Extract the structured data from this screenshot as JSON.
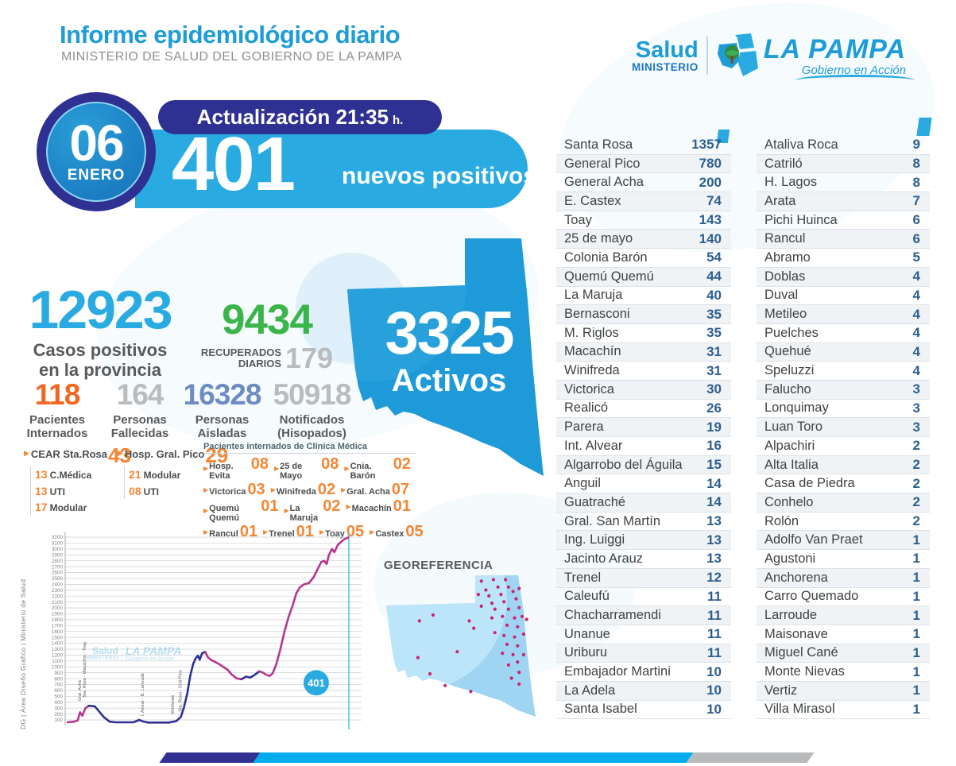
{
  "header": {
    "title": "Informe epidemiológico diario",
    "subtitle": "MINISTERIO DE SALUD DEL GOBIERNO DE LA PAMPA"
  },
  "logos": {
    "salud": "Salud",
    "ministerio": "MINISTERIO",
    "la_pampa": "LA PAMPA",
    "tagline": "Gobierno en Acción"
  },
  "date_badge": {
    "day": "06",
    "month": "ENERO"
  },
  "update": {
    "label": "Actualización 21:35",
    "hours_suffix": "h.",
    "new_positives": "401",
    "new_positives_label": "nuevos positivos"
  },
  "stats": {
    "positives": {
      "value": "12923",
      "label_line1": "Casos positivos",
      "label_line2": "en la provincia",
      "color": "#29abe2"
    },
    "recovered": {
      "value": "9434",
      "label_line1": "RECUPERADOS",
      "label_line2": "DIARIOS",
      "daily": "179",
      "color": "#39b54a"
    },
    "secondary": [
      {
        "value": "118",
        "label_line1": "Pacientes",
        "label_line2": "Internados",
        "color": "#f26722"
      },
      {
        "value": "164",
        "label_line1": "Personas",
        "label_line2": "Fallecidas",
        "color": "#b9bcbe"
      },
      {
        "value": "16328",
        "label_line1": "Personas",
        "label_line2": "Aisladas",
        "color": "#6d8cc3"
      },
      {
        "value": "50918",
        "label_line1": "Notificados",
        "label_line2": "(Hisopados)",
        "color": "#b9bcbe"
      }
    ]
  },
  "hospitals": {
    "groups": [
      {
        "name": "CEAR Sta.Rosa",
        "value": "43",
        "details": [
          {
            "num": "13",
            "label": "C.Médica"
          },
          {
            "num": "13",
            "label": "UTI"
          },
          {
            "num": "17",
            "label": "Modular"
          }
        ]
      },
      {
        "name": "Hosp. Gral. Pico",
        "value": "29",
        "details": [
          {
            "num": "21",
            "label": "Modular"
          },
          {
            "num": "08",
            "label": "UTI"
          }
        ]
      }
    ],
    "clinica_medica": {
      "title": "Pacientes internados de Clínica Médica",
      "rows": [
        [
          {
            "name": "Hosp. Evita",
            "num": "08"
          },
          {
            "name": "25 de Mayo",
            "num": "08"
          },
          {
            "name": "Cnia. Barón",
            "num": "02"
          }
        ],
        [
          {
            "name": "Victorica",
            "num": "03"
          },
          {
            "name": "Winifreda",
            "num": "02"
          },
          {
            "name": "Gral. Acha",
            "num": "07"
          }
        ],
        [
          {
            "name": "Quemú Quemú",
            "num": "01"
          },
          {
            "name": "La Maruja",
            "num": "02"
          },
          {
            "name": "Macachín",
            "num": "01"
          }
        ],
        [
          {
            "name": "Rancul",
            "num": "01"
          },
          {
            "name": "Trenel",
            "num": "01"
          },
          {
            "name": "Toay",
            "num": "05"
          },
          {
            "name": "Castex",
            "num": "05"
          }
        ]
      ]
    }
  },
  "actives_map": {
    "value": "3325",
    "label": "Activos",
    "color": "#1f9ad8"
  },
  "georeference": {
    "title": "GEOREFERENCIA",
    "dot_color": "#c9256f",
    "dots": [
      [
        0.63,
        0.04
      ],
      [
        0.71,
        0.03
      ],
      [
        0.79,
        0.03
      ],
      [
        0.81,
        0.08
      ],
      [
        0.74,
        0.08
      ],
      [
        0.66,
        0.1
      ],
      [
        0.61,
        0.13
      ],
      [
        0.68,
        0.14
      ],
      [
        0.76,
        0.13
      ],
      [
        0.84,
        0.11
      ],
      [
        0.88,
        0.09
      ],
      [
        0.86,
        0.16
      ],
      [
        0.78,
        0.18
      ],
      [
        0.7,
        0.19
      ],
      [
        0.63,
        0.21
      ],
      [
        0.72,
        0.23
      ],
      [
        0.81,
        0.23
      ],
      [
        0.88,
        0.22
      ],
      [
        0.9,
        0.28
      ],
      [
        0.85,
        0.29
      ],
      [
        0.77,
        0.28
      ],
      [
        0.7,
        0.29
      ],
      [
        0.8,
        0.34
      ],
      [
        0.87,
        0.35
      ],
      [
        0.91,
        0.4
      ],
      [
        0.85,
        0.42
      ],
      [
        0.78,
        0.41
      ],
      [
        0.72,
        0.39
      ],
      [
        0.8,
        0.47
      ],
      [
        0.87,
        0.48
      ],
      [
        0.91,
        0.54
      ],
      [
        0.84,
        0.54
      ],
      [
        0.77,
        0.53
      ],
      [
        0.87,
        0.59
      ],
      [
        0.81,
        0.61
      ],
      [
        0.88,
        0.66
      ],
      [
        0.83,
        0.7
      ],
      [
        0.31,
        0.27
      ],
      [
        0.22,
        0.31
      ],
      [
        0.55,
        0.31
      ],
      [
        0.58,
        0.36
      ],
      [
        0.47,
        0.52
      ],
      [
        0.21,
        0.56
      ],
      [
        0.29,
        0.67
      ],
      [
        0.39,
        0.75
      ],
      [
        0.56,
        0.79
      ],
      [
        0.88,
        0.74
      ],
      [
        0.93,
        0.3
      ]
    ]
  },
  "credit_vertical": "DG | Área Diseño Gráfico | Ministerio de Salud",
  "chart_data": {
    "type": "line",
    "title": "",
    "xlabel": "",
    "ylabel": "",
    "ylim": [
      0,
      3250
    ],
    "yticks": {
      "start": 100,
      "end": 3200,
      "step": 100
    },
    "grid": true,
    "colors": {
      "navy": "#2e3192",
      "magenta": "#b5368d",
      "marker": "#5bc6ea",
      "badge": "#29abe2"
    },
    "points": [
      [
        0.008,
        60
      ],
      [
        0.03,
        70
      ],
      [
        0.042,
        90
      ],
      [
        0.05,
        230
      ],
      [
        0.058,
        170
      ],
      [
        0.068,
        300
      ],
      [
        0.08,
        340
      ],
      [
        0.1,
        330
      ],
      [
        0.115,
        240
      ],
      [
        0.13,
        150
      ],
      [
        0.15,
        70
      ],
      [
        0.17,
        60
      ],
      [
        0.23,
        60
      ],
      [
        0.25,
        100
      ],
      [
        0.262,
        75
      ],
      [
        0.28,
        55
      ],
      [
        0.35,
        55
      ],
      [
        0.375,
        80
      ],
      [
        0.39,
        150
      ],
      [
        0.4,
        300
      ],
      [
        0.412,
        550
      ],
      [
        0.422,
        850
      ],
      [
        0.432,
        1050
      ],
      [
        0.44,
        1140
      ],
      [
        0.448,
        1190
      ],
      [
        0.454,
        1120
      ],
      [
        0.462,
        1230
      ],
      [
        0.472,
        1255
      ],
      [
        0.482,
        1160
      ],
      [
        0.495,
        1110
      ],
      [
        0.515,
        1060
      ],
      [
        0.53,
        1010
      ],
      [
        0.548,
        950
      ],
      [
        0.562,
        870
      ],
      [
        0.578,
        805
      ],
      [
        0.595,
        790
      ],
      [
        0.61,
        835
      ],
      [
        0.625,
        820
      ],
      [
        0.64,
        865
      ],
      [
        0.655,
        925
      ],
      [
        0.668,
        900
      ],
      [
        0.678,
        865
      ],
      [
        0.69,
        845
      ],
      [
        0.7,
        890
      ],
      [
        0.712,
        1040
      ],
      [
        0.726,
        1300
      ],
      [
        0.74,
        1600
      ],
      [
        0.754,
        1850
      ],
      [
        0.768,
        2050
      ],
      [
        0.78,
        2250
      ],
      [
        0.792,
        2350
      ],
      [
        0.806,
        2400
      ],
      [
        0.822,
        2420
      ],
      [
        0.838,
        2520
      ],
      [
        0.852,
        2660
      ],
      [
        0.864,
        2780
      ],
      [
        0.874,
        2800
      ],
      [
        0.882,
        2745
      ],
      [
        0.89,
        2900
      ],
      [
        0.9,
        3000
      ],
      [
        0.908,
        2945
      ],
      [
        0.92,
        3070
      ],
      [
        0.94,
        3160
      ],
      [
        0.955,
        3195
      ]
    ],
    "segments": [
      {
        "from": 0,
        "to": 6,
        "color": "magenta"
      },
      {
        "from": 6,
        "to": 27,
        "color": "navy"
      },
      {
        "from": 27,
        "to": 35,
        "color": "magenta"
      },
      {
        "from": 35,
        "to": 39,
        "color": "navy"
      },
      {
        "from": 39,
        "to": 63,
        "color": "magenta"
      }
    ],
    "annotations": [
      {
        "label": "Gral. Acha",
        "x": 0.048,
        "v": 420
      },
      {
        "label": "Sta. Rosa - Macachín - Toay",
        "x": 0.064,
        "v": 480
      },
      {
        "label": "I. Alvear - B. Larroudé",
        "x": 0.26,
        "v": 160
      },
      {
        "label": "Winifreda",
        "x": 0.362,
        "v": 200
      },
      {
        "label": "Sta. Rosa - Gral Pico",
        "x": 0.388,
        "v": 240
      }
    ],
    "badge": {
      "label": "401",
      "x": 0.847,
      "v": 730
    },
    "marker_line_x": 0.957
  },
  "city_tables": [
    {
      "rows": [
        {
          "name": "Santa Rosa",
          "value": "1357"
        },
        {
          "name": "General Pico",
          "value": "780"
        },
        {
          "name": "General Acha",
          "value": "200"
        },
        {
          "name": "E. Castex",
          "value": "74"
        },
        {
          "name": "Toay",
          "value": "143"
        },
        {
          "name": "25 de mayo",
          "value": "140"
        },
        {
          "name": "Colonia Barón",
          "value": "54"
        },
        {
          "name": "Quemú Quemú",
          "value": "44"
        },
        {
          "name": "La Maruja",
          "value": "40"
        },
        {
          "name": "Bernasconi",
          "value": "35"
        },
        {
          "name": "M. Riglos",
          "value": "35"
        },
        {
          "name": "Macachín",
          "value": "31"
        },
        {
          "name": "Winifreda",
          "value": "31"
        },
        {
          "name": "Victorica",
          "value": "30"
        },
        {
          "name": "Realicó",
          "value": "26"
        },
        {
          "name": "Parera",
          "value": "19"
        },
        {
          "name": "Int. Alvear",
          "value": "16"
        },
        {
          "name": "Algarrobo del Águila",
          "value": "15"
        },
        {
          "name": "Anguil",
          "value": "14"
        },
        {
          "name": "Guatraché",
          "value": "14"
        },
        {
          "name": "Gral. San Martín",
          "value": "13"
        },
        {
          "name": "Ing. Luiggi",
          "value": "13"
        },
        {
          "name": "Jacinto Arauz",
          "value": "13"
        },
        {
          "name": "Trenel",
          "value": "12"
        },
        {
          "name": "Caleufú",
          "value": "11"
        },
        {
          "name": "Chacharramendi",
          "value": "11"
        },
        {
          "name": "Unanue",
          "value": "11"
        },
        {
          "name": "Uriburu",
          "value": "11"
        },
        {
          "name": "Embajador Martini",
          "value": "10"
        },
        {
          "name": "La Adela",
          "value": "10"
        },
        {
          "name": "Santa Isabel",
          "value": "10"
        }
      ]
    },
    {
      "rows": [
        {
          "name": "Ataliva Roca",
          "value": "9"
        },
        {
          "name": "Catriló",
          "value": "8"
        },
        {
          "name": "H. Lagos",
          "value": "8"
        },
        {
          "name": "Arata",
          "value": "7"
        },
        {
          "name": "Pichi Huinca",
          "value": "6"
        },
        {
          "name": "Rancul",
          "value": "6"
        },
        {
          "name": "Abramo",
          "value": "5"
        },
        {
          "name": "Doblas",
          "value": "4"
        },
        {
          "name": "Duval",
          "value": "4"
        },
        {
          "name": "Metileo",
          "value": "4"
        },
        {
          "name": "Puelches",
          "value": "4"
        },
        {
          "name": "Quehué",
          "value": "4"
        },
        {
          "name": "Speluzzi",
          "value": "4"
        },
        {
          "name": "Falucho",
          "value": "3"
        },
        {
          "name": "Lonquimay",
          "value": "3"
        },
        {
          "name": "Luan Toro",
          "value": "3"
        },
        {
          "name": "Alpachiri",
          "value": "2"
        },
        {
          "name": "Alta Italia",
          "value": "2"
        },
        {
          "name": "Casa de Piedra",
          "value": "2"
        },
        {
          "name": "Conhelo",
          "value": "2"
        },
        {
          "name": "Rolón",
          "value": "2"
        },
        {
          "name": "Adolfo Van Praet",
          "value": "1"
        },
        {
          "name": "Agustoni",
          "value": "1"
        },
        {
          "name": "Anchorena",
          "value": "1"
        },
        {
          "name": "Carro Quemado",
          "value": "1"
        },
        {
          "name": "Larroude",
          "value": "1"
        },
        {
          "name": "Maisonave",
          "value": "1"
        },
        {
          "name": "Miguel Cané",
          "value": "1"
        },
        {
          "name": "Monte Nievas",
          "value": "1"
        },
        {
          "name": "Vertiz",
          "value": "1"
        },
        {
          "name": "Villa Mirasol",
          "value": "1"
        }
      ]
    }
  ]
}
